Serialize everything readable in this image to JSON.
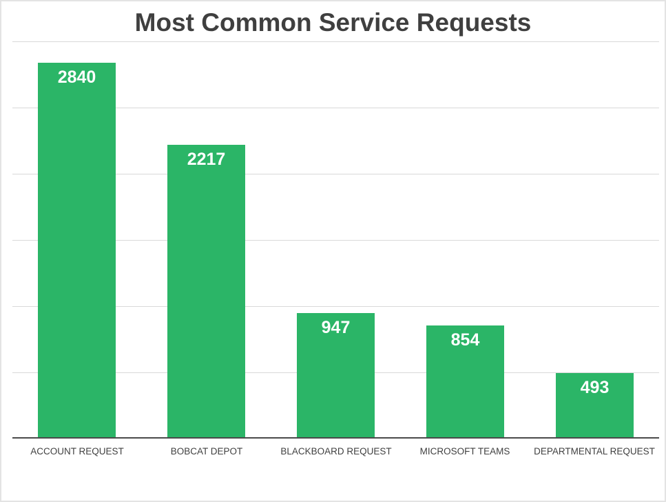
{
  "chart_data": {
    "type": "bar",
    "title": "Most Common Service Requests",
    "categories": [
      "ACCOUNT REQUEST",
      "BOBCAT DEPOT",
      "BLACKBOARD REQUEST",
      "MICROSOFT TEAMS",
      "DEPARTMENTAL REQUEST"
    ],
    "values": [
      2840,
      2217,
      947,
      854,
      493
    ],
    "data_labels": [
      "2840",
      "2217",
      "947",
      "854",
      "493"
    ],
    "data_label_position": "inside-top",
    "xlabel": "",
    "ylabel": "",
    "ylim": [
      0,
      3000
    ],
    "gridline_interval": 500,
    "grid": "horizontal",
    "y_axis_tick_labels": "none",
    "legend_position": "none",
    "colors": {
      "bar_fill": "#2bb567",
      "value_label": "#ffffff",
      "title_text": "#3f3f3f",
      "category_text": "#404040",
      "gridline": "#d9d9d9",
      "axis_line": "#4a4a4a",
      "background": "#ffffff",
      "canvas_border": "#e3e3e3"
    }
  }
}
